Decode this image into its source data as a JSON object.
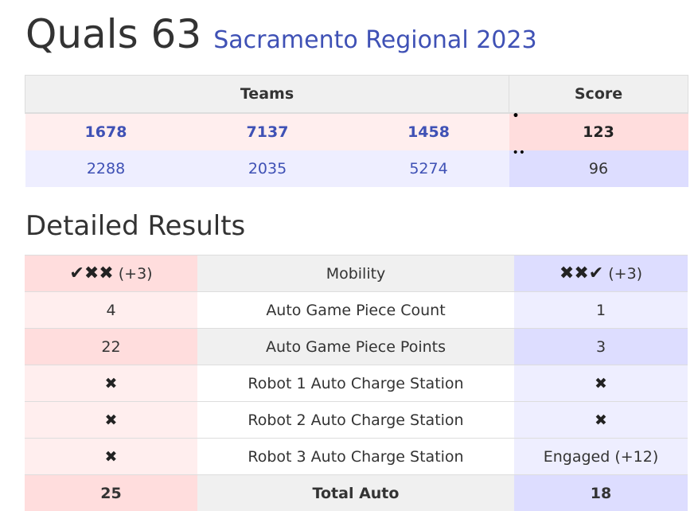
{
  "header": {
    "match_title": "Quals 63",
    "event_link": "Sacramento Regional 2023"
  },
  "match_table": {
    "teams_header": "Teams",
    "score_header": "Score",
    "red": {
      "teams": [
        "1678",
        "7137",
        "1458"
      ],
      "score": "123",
      "rp_dots": "•"
    },
    "blue": {
      "teams": [
        "2288",
        "2035",
        "5274"
      ],
      "score": "96",
      "rp_dots": "••"
    }
  },
  "detailed_results": {
    "title": "Detailed Results",
    "rows": [
      {
        "label": "Mobility",
        "red": "✔✖✖",
        "red_bonus": "(+3)",
        "blue": "✖✖✔",
        "blue_bonus": "(+3)"
      },
      {
        "label": "Auto Game Piece Count",
        "red": "4",
        "blue": "1"
      },
      {
        "label": "Auto Game Piece Points",
        "red": "22",
        "blue": "3"
      },
      {
        "label": "Robot 1 Auto Charge Station",
        "red": "✖",
        "blue": "✖"
      },
      {
        "label": "Robot 2 Auto Charge Station",
        "red": "✖",
        "blue": "✖"
      },
      {
        "label": "Robot 3 Auto Charge Station",
        "red": "✖",
        "blue": "Engaged (+12)"
      },
      {
        "label": "Total Auto",
        "red": "25",
        "blue": "18"
      }
    ]
  },
  "colors": {
    "link": "#3f51b5",
    "red_light": "#ffeeee",
    "red_dark": "#ffdddd",
    "blue_light": "#eeeeff",
    "blue_dark": "#ddddff"
  }
}
